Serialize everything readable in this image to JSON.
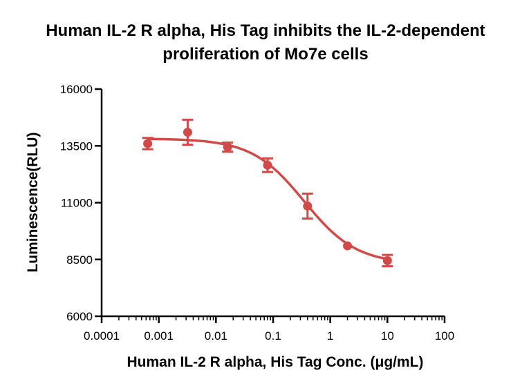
{
  "chart_data": {
    "type": "scatter",
    "title_lines": [
      "Human IL-2 R alpha, His Tag inhibits the IL-2-dependent",
      "proliferation of Mo7e cells"
    ],
    "xlabel": "Human IL-2 R alpha, His Tag Conc. (μg/mL)",
    "ylabel": "Luminescence(RLU)",
    "x_scale": "log",
    "xlim": [
      0.0001,
      100
    ],
    "ylim": [
      6000,
      16000
    ],
    "x_ticks": [
      0.0001,
      0.001,
      0.01,
      0.1,
      1,
      10,
      100
    ],
    "x_tick_labels": [
      "0.0001",
      "0.001",
      "0.01",
      "0.1",
      "1",
      "10",
      "100"
    ],
    "y_ticks": [
      6000,
      8500,
      11000,
      13500,
      16000
    ],
    "y_tick_labels": [
      "6000",
      "8500",
      "11000",
      "13500",
      "16000"
    ],
    "grid": false,
    "legend": "none",
    "series": [
      {
        "color": "#d04a48",
        "points": [
          {
            "x": 0.00064,
            "y": 13600,
            "err": 250
          },
          {
            "x": 0.0032,
            "y": 14100,
            "err": 550
          },
          {
            "x": 0.016,
            "y": 13450,
            "err": 200
          },
          {
            "x": 0.08,
            "y": 12650,
            "err": 300
          },
          {
            "x": 0.4,
            "y": 10850,
            "err": 550
          },
          {
            "x": 2,
            "y": 9100,
            "err": 0
          },
          {
            "x": 10,
            "y": 8450,
            "err": 250
          }
        ],
        "fit_curve": {
          "model": "4PL",
          "bottom": 8300,
          "top": 13820,
          "ec50": 0.35,
          "hill": 0.95,
          "x_range": [
            0.00064,
            10
          ]
        }
      }
    ]
  }
}
